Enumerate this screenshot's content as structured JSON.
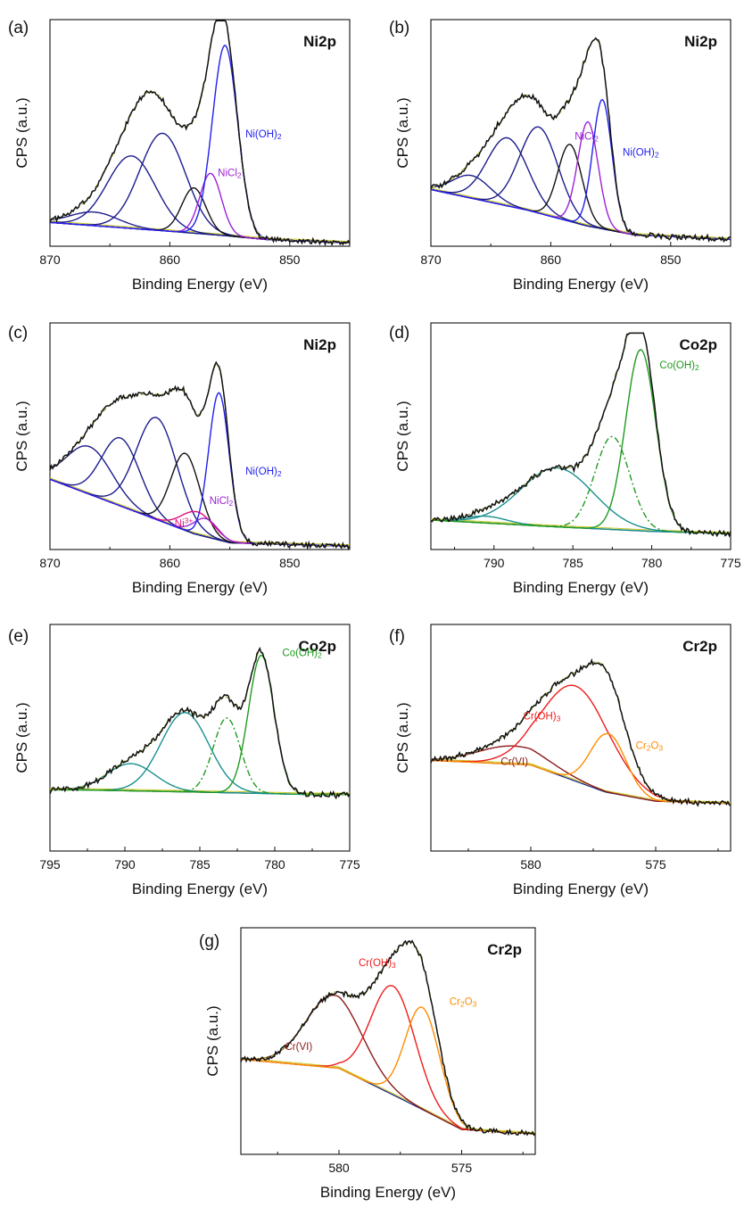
{
  "chart_data": [
    {
      "panel": "(a)",
      "element": "Ni2p",
      "type": "line",
      "xlabel": "Binding Energy (eV)",
      "ylabel": "CPS (a.u.)",
      "xlim": [
        870,
        845
      ],
      "xticks": [
        870,
        860,
        850
      ],
      "ylim": [
        0,
        100
      ],
      "background": [
        [
          870,
          10.5
        ],
        [
          861,
          7
        ],
        [
          855,
          4.5
        ],
        [
          852,
          3
        ],
        [
          845,
          1.5
        ]
      ],
      "peaks": [
        {
          "center": 866.3,
          "height": 6,
          "width": 2.0,
          "color": "#1c1c8c"
        },
        {
          "center": 863.2,
          "height": 32,
          "width": 2.0,
          "color": "#1c1c8c"
        },
        {
          "center": 860.6,
          "height": 43,
          "width": 1.9,
          "color": "#1c1c8c"
        },
        {
          "center": 858.0,
          "height": 20,
          "width": 1.0,
          "color": "#111111"
        },
        {
          "center": 856.6,
          "height": 27,
          "width": 0.9,
          "color": "#9b22d6"
        },
        {
          "center": 855.4,
          "height": 84,
          "width": 1.05,
          "color": "#2020ee"
        }
      ],
      "labels": [
        {
          "parts": [
            [
              "Ni(OH)",
              ""
            ],
            [
              "2",
              "sub"
            ]
          ],
          "x": 853.7,
          "y": 48,
          "color": "#2020ee",
          "anchor": "start"
        },
        {
          "parts": [
            [
              "NiCl",
              ""
            ],
            [
              "2",
              "sub"
            ]
          ],
          "x": 856.0,
          "y": 31,
          "color": "#9b22d6",
          "anchor": "start"
        }
      ]
    },
    {
      "panel": "(b)",
      "element": "Ni2p",
      "type": "line",
      "xlabel": "Binding Energy (eV)",
      "ylabel": "CPS (a.u.)",
      "xlim": [
        870,
        845
      ],
      "xticks": [
        870,
        860,
        850
      ],
      "ylim": [
        0,
        100
      ],
      "background": [
        [
          870,
          25
        ],
        [
          862,
          16
        ],
        [
          857,
          9
        ],
        [
          853,
          5
        ],
        [
          845,
          3
        ]
      ],
      "peaks": [
        {
          "center": 866.6,
          "height": 10,
          "width": 1.6,
          "color": "#1c1c8c"
        },
        {
          "center": 863.6,
          "height": 30,
          "width": 1.7,
          "color": "#1c1c8c"
        },
        {
          "center": 861.0,
          "height": 38,
          "width": 1.6,
          "color": "#1c1c8c"
        },
        {
          "center": 858.4,
          "height": 34,
          "width": 1.0,
          "color": "#111111"
        },
        {
          "center": 856.9,
          "height": 46,
          "width": 0.85,
          "color": "#9b22d6"
        },
        {
          "center": 855.7,
          "height": 57,
          "width": 0.8,
          "color": "#2020ee"
        }
      ],
      "labels": [
        {
          "parts": [
            [
              "NiCl",
              ""
            ],
            [
              "2",
              "sub"
            ]
          ],
          "x": 858.0,
          "y": 47,
          "color": "#9b22d6",
          "anchor": "start"
        },
        {
          "parts": [
            [
              "Ni(OH)",
              ""
            ],
            [
              "2",
              "sub"
            ]
          ],
          "x": 854.0,
          "y": 40,
          "color": "#2020ee",
          "anchor": "start"
        }
      ]
    },
    {
      "panel": "(c)",
      "element": "Ni2p",
      "type": "line",
      "xlabel": "Binding Energy (eV)",
      "ylabel": "CPS (a.u.)",
      "xlim": [
        870,
        845
      ],
      "xticks": [
        870,
        860,
        850
      ],
      "ylim": [
        0,
        100
      ],
      "background": [
        [
          870,
          31
        ],
        [
          862,
          15
        ],
        [
          858,
          7
        ],
        [
          855,
          3
        ],
        [
          845,
          1.5
        ]
      ],
      "peaks": [
        {
          "center": 866.7,
          "height": 21,
          "width": 1.9,
          "color": "#1c1c8c"
        },
        {
          "center": 864.1,
          "height": 30,
          "width": 1.6,
          "color": "#1c1c8c"
        },
        {
          "center": 861.1,
          "height": 45,
          "width": 1.7,
          "color": "#1c1c8c"
        },
        {
          "center": 858.7,
          "height": 34,
          "width": 1.2,
          "color": "#111111"
        },
        {
          "center": 857.7,
          "height": 10,
          "width": 1.3,
          "color": "#e2117c"
        },
        {
          "center": 857.0,
          "height": 8,
          "width": 1.0,
          "color": "#9b22d6"
        },
        {
          "center": 855.9,
          "height": 65,
          "width": 0.85,
          "color": "#2020ee"
        }
      ],
      "labels": [
        {
          "parts": [
            [
              "Ni(OH)",
              ""
            ],
            [
              "2",
              "sub"
            ]
          ],
          "x": 853.7,
          "y": 33,
          "color": "#2020ee",
          "anchor": "start"
        },
        {
          "parts": [
            [
              "NiCl",
              ""
            ],
            [
              "2",
              "sub"
            ]
          ],
          "x": 856.7,
          "y": 20,
          "color": "#9b22d6",
          "anchor": "start"
        },
        {
          "parts": [
            [
              "Ni",
              ""
            ],
            [
              "3+",
              "sup"
            ]
          ],
          "x": 859.6,
          "y": 10,
          "color": "#e2117c",
          "anchor": "start"
        }
      ]
    },
    {
      "panel": "(d)",
      "element": "Co2p",
      "type": "line",
      "xlabel": "Binding Energy (eV)",
      "ylabel": "CPS (a.u.)",
      "xlim": [
        794,
        775
      ],
      "xticks": [
        790,
        785,
        780,
        775
      ],
      "ylim": [
        0,
        100
      ],
      "background": [
        [
          794,
          13
        ],
        [
          786,
          10
        ],
        [
          780,
          8
        ],
        [
          775,
          7
        ]
      ],
      "peaks": [
        {
          "center": 790.5,
          "height": 3,
          "width": 1.3,
          "color": "#1a8f8f"
        },
        {
          "center": 786.0,
          "height": 26,
          "width": 2.3,
          "color": "#1a8f8f"
        },
        {
          "center": 782.5,
          "height": 41,
          "width": 1.1,
          "color": "#1e9a1e",
          "dash": true
        },
        {
          "center": 780.7,
          "height": 80,
          "width": 0.95,
          "color": "#1e9a1e"
        }
      ],
      "labels": [
        {
          "parts": [
            [
              "Co(OH)",
              ""
            ],
            [
              "2",
              "sub"
            ]
          ],
          "x": 779.5,
          "y": 80,
          "color": "#1e9a1e",
          "anchor": "start"
        }
      ]
    },
    {
      "panel": "(e)",
      "element": "Co2p",
      "type": "line",
      "xlabel": "Binding Energy (eV)",
      "ylabel": "CPS (a.u.)",
      "xlim": [
        795,
        775
      ],
      "xticks": [
        795,
        790,
        785,
        780,
        775
      ],
      "ylim": [
        0,
        100
      ],
      "background": [
        [
          793,
          27
        ],
        [
          785,
          26
        ],
        [
          778,
          25
        ],
        [
          775,
          25
        ]
      ],
      "peaks": [
        {
          "center": 789.6,
          "height": 12,
          "width": 1.6,
          "color": "#1a8f8f"
        },
        {
          "center": 786.0,
          "height": 35,
          "width": 1.6,
          "color": "#1a8f8f"
        },
        {
          "center": 783.2,
          "height": 33,
          "width": 0.9,
          "color": "#1e9a1e",
          "dash": true
        },
        {
          "center": 780.9,
          "height": 61,
          "width": 0.85,
          "color": "#1e9a1e"
        }
      ],
      "labels": [
        {
          "parts": [
            [
              "Co(OH)",
              ""
            ],
            [
              "2",
              "sub"
            ]
          ],
          "x": 779.5,
          "y": 86,
          "color": "#1e9a1e",
          "anchor": "start"
        }
      ]
    },
    {
      "panel": "(f)",
      "element": "Cr2p",
      "type": "line",
      "xlabel": "Binding Energy (eV)",
      "ylabel": "CPS (a.u.)",
      "xlim": [
        584,
        572
      ],
      "xticks": [
        580,
        575
      ],
      "ylim": [
        0,
        100
      ],
      "background": [
        [
          584,
          40
        ],
        [
          580,
          38
        ],
        [
          577,
          26
        ],
        [
          575,
          22
        ],
        [
          572,
          21
        ]
      ],
      "peaks": [
        {
          "center": 580.7,
          "height": 8,
          "width": 1.4,
          "color": "#8b1a1a"
        },
        {
          "center": 578.2,
          "height": 42,
          "width": 1.35,
          "color": "#ee1c1c"
        },
        {
          "center": 576.9,
          "height": 26,
          "width": 0.7,
          "color": "#ff8c00"
        }
      ],
      "labels": [
        {
          "parts": [
            [
              "Cr(OH)",
              ""
            ],
            [
              "3",
              "sub"
            ]
          ],
          "x": 580.3,
          "y": 58,
          "color": "#ee1c1c",
          "anchor": "start"
        },
        {
          "parts": [
            [
              "Cr",
              ""
            ],
            [
              "2",
              "sub"
            ],
            [
              "O",
              ""
            ],
            [
              "3",
              "sub"
            ]
          ],
          "x": 575.8,
          "y": 45,
          "color": "#ff8c00",
          "anchor": "start"
        },
        {
          "parts": [
            [
              "Cr(VI)",
              ""
            ]
          ],
          "x": 581.2,
          "y": 38,
          "color": "#8b1a1a",
          "anchor": "start"
        }
      ]
    },
    {
      "panel": "(g)",
      "element": "Cr2p",
      "type": "line",
      "xlabel": "Binding Energy (eV)",
      "ylabel": "CPS (a.u.)",
      "xlim": [
        584,
        572
      ],
      "xticks": [
        580,
        575
      ],
      "ylim": [
        0,
        100
      ],
      "background": [
        [
          584,
          42
        ],
        [
          580,
          38
        ],
        [
          577,
          22
        ],
        [
          575,
          11
        ],
        [
          572,
          9
        ]
      ],
      "peaks": [
        {
          "center": 580.2,
          "height": 32,
          "width": 1.15,
          "color": "#8b1a1a"
        },
        {
          "center": 577.8,
          "height": 48,
          "width": 0.9,
          "color": "#ee1c1c"
        },
        {
          "center": 576.6,
          "height": 45,
          "width": 0.7,
          "color": "#ff8c00"
        }
      ],
      "labels": [
        {
          "parts": [
            [
              "Cr(OH)",
              ""
            ],
            [
              "3",
              "sub"
            ]
          ],
          "x": 579.2,
          "y": 83,
          "color": "#ee1c1c",
          "anchor": "start"
        },
        {
          "parts": [
            [
              "Cr",
              ""
            ],
            [
              "2",
              "sub"
            ],
            [
              "O",
              ""
            ],
            [
              "3",
              "sub"
            ]
          ],
          "x": 575.5,
          "y": 66,
          "color": "#ff8c00",
          "anchor": "start"
        },
        {
          "parts": [
            [
              "Cr(VI)",
              ""
            ]
          ],
          "x": 582.2,
          "y": 46,
          "color": "#8b1a1a",
          "anchor": "start"
        }
      ]
    }
  ]
}
